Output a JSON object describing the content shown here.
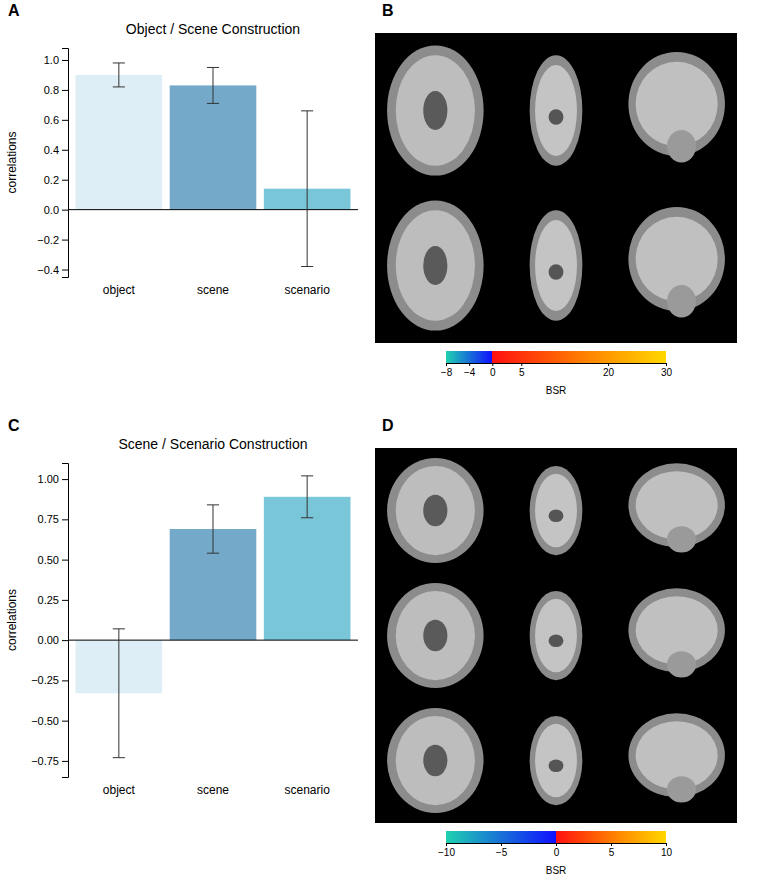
{
  "chart_data": [
    {
      "type": "bar",
      "panel": "A",
      "title": "Object / Scene Construction",
      "y_label": "correlations",
      "categories": [
        "object",
        "scene",
        "scenario"
      ],
      "values": [
        0.9,
        0.83,
        0.14
      ],
      "errors": [
        0.08,
        0.12,
        0.52
      ],
      "colors": [
        "#ddeef6",
        "#74a9c9",
        "#79c6d8"
      ],
      "ylim": [
        -0.45,
        1.08
      ],
      "yticks": [
        {
          "value": -0.4,
          "label": "−0.4"
        },
        {
          "value": -0.2,
          "label": "−0.2"
        },
        {
          "value": 0,
          "label": "0.0"
        },
        {
          "value": 0.2,
          "label": "0.2"
        },
        {
          "value": 0.4,
          "label": "0.4"
        },
        {
          "value": 0.6,
          "label": "0.6"
        },
        {
          "value": 0.8,
          "label": "0.8"
        },
        {
          "value": 1.0,
          "label": "1.0"
        }
      ]
    },
    {
      "type": "image",
      "panel": "B",
      "colorbar": {
        "label": "BSR",
        "range": [
          -8,
          30
        ],
        "ticks": [
          {
            "value": -8,
            "label": "−8"
          },
          {
            "value": -4,
            "label": "−4"
          },
          0,
          5,
          20,
          30
        ]
      }
    },
    {
      "type": "bar",
      "panel": "C",
      "title": "Scene / Scenario Construction",
      "y_label": "correlations",
      "categories": [
        "object",
        "scene",
        "scenario"
      ],
      "values": [
        -0.33,
        0.69,
        0.89
      ],
      "errors": [
        0.4,
        0.15,
        0.13
      ],
      "colors": [
        "#ddeef6",
        "#74a9c9",
        "#79c6d8"
      ],
      "ylim": [
        -0.85,
        1.1
      ],
      "yticks": [
        {
          "value": -0.75,
          "label": "−0.75"
        },
        {
          "value": -0.5,
          "label": "−0.50"
        },
        {
          "value": -0.25,
          "label": "−0.25"
        },
        {
          "value": 0,
          "label": "0.00"
        },
        {
          "value": 0.25,
          "label": "0.25"
        },
        {
          "value": 0.5,
          "label": "0.50"
        },
        {
          "value": 0.75,
          "label": "0.75"
        },
        {
          "value": 1.0,
          "label": "1.00"
        }
      ]
    },
    {
      "type": "image",
      "panel": "D",
      "colorbar": {
        "label": "BSR",
        "range": [
          -10,
          10
        ],
        "ticks": [
          {
            "value": -10,
            "label": "−10"
          },
          {
            "value": -5,
            "label": "−5"
          },
          0,
          5,
          10
        ]
      }
    }
  ]
}
